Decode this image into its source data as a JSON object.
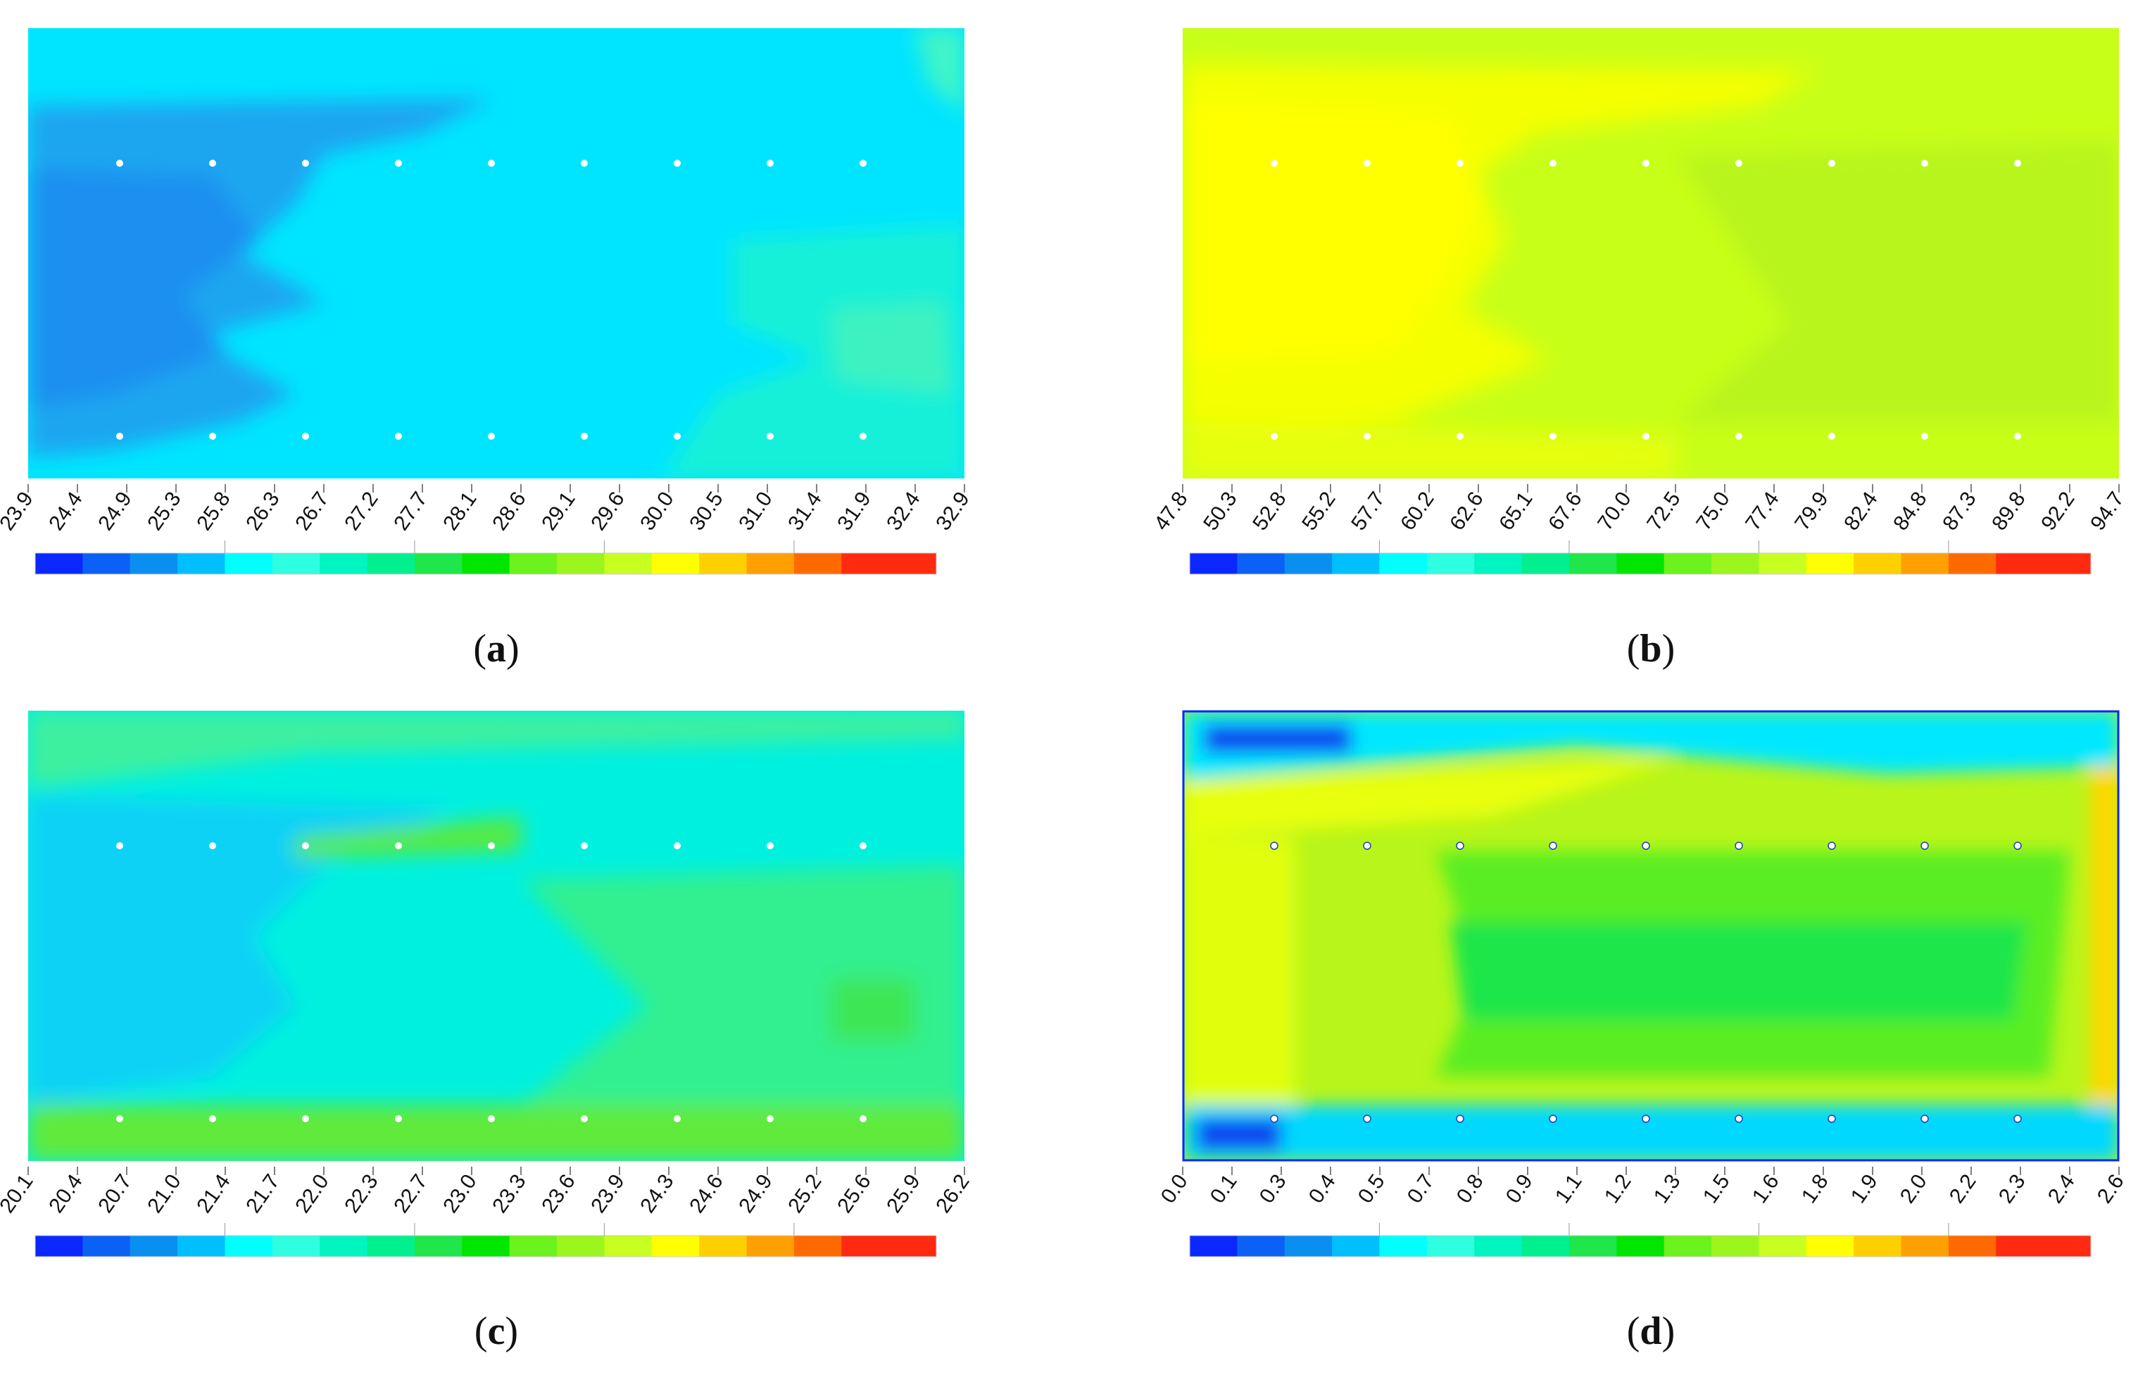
{
  "colors": {
    "palette": [
      "#0a28ff",
      "#0b61f5",
      "#0a8ff0",
      "#00bfff",
      "#00ffff",
      "#2effe0",
      "#00f5c0",
      "#00f090",
      "#1fe64a",
      "#00e600",
      "#6cf21c",
      "#9cf51d",
      "#c6ff20",
      "#ffff00",
      "#ffd000",
      "#ffa000",
      "#ff6a00",
      "#ff2a10"
    ],
    "marker": "#ffffff",
    "outline_d": "#0a28ff"
  },
  "chart_data": [
    {
      "type": "heatmap",
      "panel_label": "a",
      "colorbar_ticks": [
        "23.9",
        "24.4",
        "24.9",
        "25.3",
        "25.8",
        "26.3",
        "26.7",
        "27.2",
        "27.7",
        "28.1",
        "28.6",
        "29.1",
        "29.6",
        "30.0",
        "30.5",
        "31.0",
        "31.4",
        "31.9",
        "32.4",
        "32.9"
      ],
      "dominant_colors": [
        "#00e8ff",
        "#1ab0f0",
        "#00f0e0",
        "#38f5c8"
      ],
      "grid": false
    },
    {
      "type": "heatmap",
      "panel_label": "b",
      "colorbar_ticks": [
        "47.8",
        "50.3",
        "52.8",
        "55.2",
        "57.7",
        "60.2",
        "62.6",
        "65.1",
        "67.6",
        "70.0",
        "72.5",
        "75.0",
        "77.4",
        "79.9",
        "82.4",
        "84.8",
        "87.3",
        "89.8",
        "92.2",
        "94.7"
      ],
      "dominant_colors": [
        "#d7ff10",
        "#f0ff00",
        "#ffff00",
        "#b6f51a"
      ],
      "grid": false
    },
    {
      "type": "heatmap",
      "panel_label": "c",
      "colorbar_ticks": [
        "20.1",
        "20.4",
        "20.7",
        "21.0",
        "21.4",
        "21.7",
        "22.0",
        "22.3",
        "22.7",
        "23.0",
        "23.3",
        "23.6",
        "23.9",
        "24.3",
        "24.6",
        "24.9",
        "25.2",
        "25.6",
        "25.9",
        "26.2"
      ],
      "dominant_colors": [
        "#00f0e0",
        "#00d4f5",
        "#30f090",
        "#4ce63a"
      ],
      "grid": false
    },
    {
      "type": "heatmap",
      "panel_label": "d",
      "colorbar_ticks": [
        "0.0",
        "0.1",
        "0.3",
        "0.4",
        "0.5",
        "0.7",
        "0.8",
        "0.9",
        "1.1",
        "1.2",
        "1.3",
        "1.5",
        "1.6",
        "1.8",
        "1.9",
        "2.0",
        "2.2",
        "2.3",
        "2.4",
        "2.6"
      ],
      "dominant_colors": [
        "#5df020",
        "#b8f51a",
        "#00f0e0",
        "#0050f0"
      ],
      "grid": false
    }
  ],
  "captions": [
    {
      "open": "(",
      "letter": "a",
      "close": ")"
    },
    {
      "open": "(",
      "letter": "b",
      "close": ")"
    },
    {
      "open": "(",
      "letter": "c",
      "close": ")"
    },
    {
      "open": "(",
      "letter": "d",
      "close": ")"
    }
  ]
}
